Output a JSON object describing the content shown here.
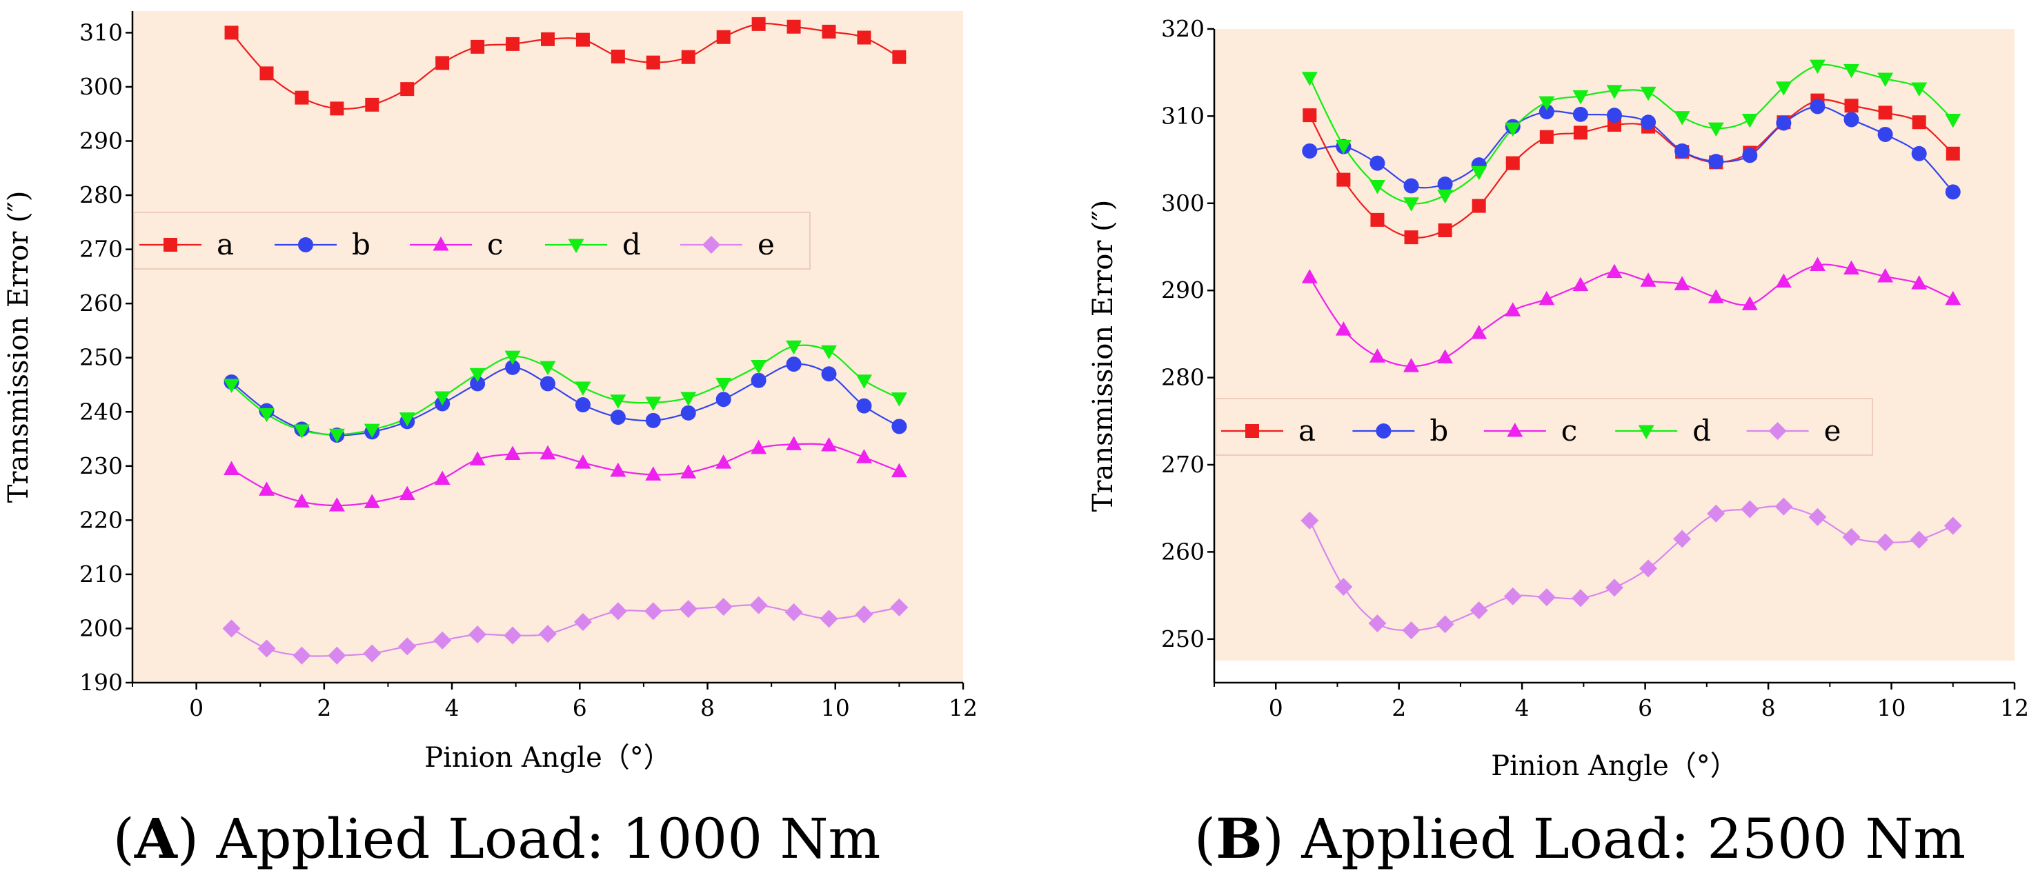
{
  "chart_data": [
    {
      "type": "line",
      "panel": "A",
      "caption_letter": "A",
      "caption_text": "Applied Load: 1000 Nm",
      "background": "#fdebdc",
      "xlabel": "Pinion Angle（°）",
      "ylabel": "Transmission Error (″)",
      "xlim": [
        -1,
        12
      ],
      "ylim": [
        190,
        314
      ],
      "xticks": [
        0,
        2,
        4,
        6,
        8,
        10,
        12
      ],
      "xtick_labels": [
        "0",
        "2",
        "4",
        "6",
        "8",
        "10",
        "12"
      ],
      "yticks": [
        190,
        200,
        210,
        220,
        230,
        240,
        250,
        260,
        270,
        280,
        290,
        300,
        310
      ],
      "ytick_labels": [
        "190",
        "200",
        "210",
        "220",
        "230",
        "240",
        "250",
        "260",
        "270",
        "280",
        "290",
        "300",
        "310"
      ],
      "legend_position": "upper-left",
      "x": [
        0.55,
        1.1,
        1.65,
        2.2,
        2.75,
        3.3,
        3.85,
        4.4,
        4.95,
        5.5,
        6.05,
        6.6,
        7.15,
        7.7,
        8.25,
        8.8,
        9.35,
        9.9,
        10.45,
        11.0
      ],
      "series": [
        {
          "name": "a",
          "color": "#ee1c1c",
          "marker": "square",
          "values": [
            310.0,
            302.5,
            298.0,
            296.0,
            296.7,
            299.6,
            304.4,
            307.4,
            307.9,
            308.8,
            308.7,
            305.6,
            304.5,
            305.5,
            309.2,
            311.6,
            311.1,
            310.2,
            309.1,
            305.5
          ]
        },
        {
          "name": "b",
          "color": "#3344ee",
          "marker": "circle",
          "values": [
            245.5,
            240.2,
            236.8,
            235.7,
            236.3,
            238.2,
            241.5,
            245.2,
            248.2,
            245.2,
            241.3,
            239.0,
            238.4,
            239.8,
            242.3,
            245.8,
            248.8,
            247.0,
            241.1,
            237.3
          ]
        },
        {
          "name": "c",
          "color": "#ee22ee",
          "marker": "triangle-up",
          "values": [
            229.4,
            225.6,
            223.4,
            222.7,
            223.3,
            224.8,
            227.6,
            231.2,
            232.2,
            232.3,
            230.6,
            229.1,
            228.4,
            228.8,
            230.6,
            233.3,
            234.0,
            233.8,
            231.6,
            229.0
          ]
        },
        {
          "name": "d",
          "color": "#11ee11",
          "marker": "triangle-down",
          "values": [
            245.0,
            239.6,
            236.6,
            235.8,
            236.7,
            238.8,
            242.7,
            247.0,
            250.2,
            248.3,
            244.5,
            242.1,
            241.7,
            242.6,
            245.2,
            248.5,
            252.1,
            251.2,
            245.8,
            242.5
          ]
        },
        {
          "name": "e",
          "color": "#d887ee",
          "marker": "diamond",
          "values": [
            200.0,
            196.3,
            195.0,
            195.0,
            195.4,
            196.7,
            197.8,
            198.9,
            198.7,
            199.0,
            201.2,
            203.2,
            203.2,
            203.6,
            204.0,
            204.3,
            203.0,
            201.8,
            202.6,
            203.9
          ]
        }
      ]
    },
    {
      "type": "line",
      "panel": "B",
      "caption_letter": "B",
      "caption_text": "Applied Load: 2500 Nm",
      "background": "#fdebdc",
      "xlabel": "Pinion Angle（°）",
      "ylabel": "Transmission Error (″)",
      "xlim": [
        -1,
        12
      ],
      "ylim": [
        245,
        320
      ],
      "xticks": [
        0,
        2,
        4,
        6,
        8,
        10,
        12
      ],
      "xtick_labels": [
        "0",
        "2",
        "4",
        "6",
        "8",
        "10",
        "12"
      ],
      "yticks": [
        250,
        260,
        270,
        280,
        290,
        300,
        310,
        320
      ],
      "ytick_labels": [
        "250",
        "260",
        "270",
        "280",
        "290",
        "300",
        "310",
        "320"
      ],
      "legend_position": "middle-left",
      "x": [
        0.55,
        1.1,
        1.65,
        2.2,
        2.75,
        3.3,
        3.85,
        4.4,
        4.95,
        5.5,
        6.05,
        6.6,
        7.15,
        7.7,
        8.25,
        8.8,
        9.35,
        9.9,
        10.45,
        11.0
      ],
      "series": [
        {
          "name": "a",
          "color": "#ee1c1c",
          "marker": "square",
          "values": [
            310.1,
            302.7,
            298.1,
            296.1,
            296.9,
            299.7,
            304.6,
            307.6,
            308.1,
            309.0,
            308.8,
            305.9,
            304.7,
            305.8,
            309.3,
            311.8,
            311.2,
            310.4,
            309.3,
            305.7
          ]
        },
        {
          "name": "b",
          "color": "#3344ee",
          "marker": "circle",
          "values": [
            306.0,
            306.5,
            304.6,
            302.0,
            302.2,
            304.4,
            308.8,
            310.5,
            310.2,
            310.1,
            309.3,
            306.0,
            304.8,
            305.5,
            309.2,
            311.1,
            309.6,
            307.9,
            305.7,
            301.3
          ]
        },
        {
          "name": "c",
          "color": "#ee22ee",
          "marker": "triangle-up",
          "values": [
            291.5,
            285.5,
            282.4,
            281.3,
            282.3,
            285.1,
            287.7,
            289.0,
            290.6,
            292.1,
            291.1,
            290.7,
            289.2,
            288.4,
            291.0,
            292.9,
            292.5,
            291.6,
            290.8,
            289.0
          ]
        },
        {
          "name": "d",
          "color": "#11ee11",
          "marker": "triangle-down",
          "values": [
            314.4,
            306.6,
            302.0,
            300.0,
            300.9,
            303.6,
            308.6,
            311.6,
            312.3,
            312.9,
            312.7,
            309.9,
            308.6,
            309.6,
            313.3,
            315.8,
            315.3,
            314.3,
            313.2,
            309.6
          ]
        },
        {
          "name": "e",
          "color": "#d887ee",
          "marker": "diamond",
          "values": [
            263.6,
            256.0,
            251.8,
            251.0,
            251.7,
            253.3,
            254.9,
            254.8,
            254.7,
            255.9,
            258.1,
            261.5,
            264.4,
            264.9,
            265.2,
            264.0,
            261.7,
            261.1,
            261.4,
            263.0
          ]
        }
      ]
    }
  ]
}
